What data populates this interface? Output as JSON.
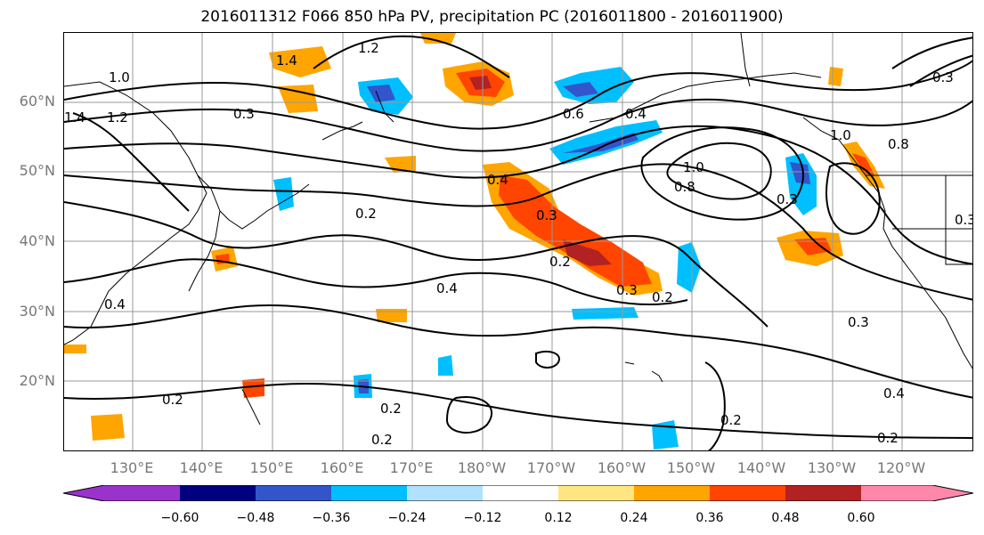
{
  "title": "2016011312 F066 850 hPa PV, precipitation PC (2016011800 - 2016011900)",
  "lat_labels": [
    "60°N",
    "50°N",
    "40°N",
    "30°N",
    "20°N"
  ],
  "lon_labels": [
    "130°E",
    "140°E",
    "150°E",
    "160°E",
    "170°E",
    "180°W",
    "170°W",
    "160°W",
    "150°W",
    "140°W",
    "130°W",
    "120°W"
  ],
  "colorbar": {
    "ticks": [
      "−0.60",
      "−0.48",
      "−0.36",
      "−0.24",
      "−0.12",
      "0.12",
      "0.24",
      "0.36",
      "0.48",
      "0.60"
    ],
    "colors": [
      "#9933cc",
      "#000080",
      "#3355cc",
      "#00bfff",
      "#b0e2ff",
      "#ffffff",
      "#ffe680",
      "#ffa500",
      "#ff4500",
      "#b22222",
      "#ff88aa"
    ]
  },
  "contour_labels": [
    "1.2",
    "1.4",
    "1.0",
    "1.4",
    "1.2",
    "0.3",
    "0.6",
    "0.4",
    "1.0",
    "0.8",
    "0.8",
    "1.0",
    "0.4",
    "0.2",
    "0.3",
    "0.2",
    "0.4",
    "0.3",
    "0.2",
    "0.3",
    "0.3",
    "0.4",
    "0.2",
    "0.2",
    "0.2",
    "0.2",
    "0.3",
    "0.4",
    "0.2",
    "0.3"
  ]
}
